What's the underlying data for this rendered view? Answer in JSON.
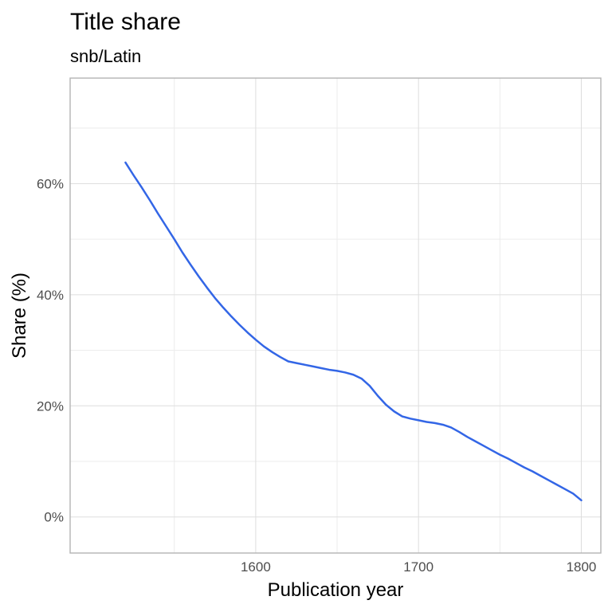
{
  "chart_data": {
    "type": "line",
    "title": "Title share",
    "subtitle": "snb/Latin",
    "xlabel": "Publication year",
    "ylabel": "Share (%)",
    "xlim": [
      1486,
      1812
    ],
    "ylim": [
      -6.5,
      79
    ],
    "x_ticks": [
      1600,
      1700,
      1800
    ],
    "x_tick_labels": [
      "1600",
      "1700",
      "1800"
    ],
    "x_minor_ticks": [
      1550,
      1650,
      1750
    ],
    "y_ticks": [
      0,
      20,
      40,
      60
    ],
    "y_tick_labels": [
      "0%",
      "20%",
      "40%",
      "60%"
    ],
    "y_minor_ticks": [
      10,
      30,
      50,
      70
    ],
    "grid": true,
    "line_color": "#3366e6",
    "series": [
      {
        "x": [
          1520,
          1525,
          1530,
          1535,
          1540,
          1545,
          1550,
          1555,
          1560,
          1565,
          1570,
          1575,
          1580,
          1585,
          1590,
          1595,
          1600,
          1605,
          1610,
          1615,
          1620,
          1625,
          1630,
          1635,
          1640,
          1645,
          1650,
          1655,
          1660,
          1665,
          1670,
          1675,
          1680,
          1685,
          1690,
          1695,
          1700,
          1705,
          1710,
          1715,
          1720,
          1725,
          1730,
          1735,
          1740,
          1745,
          1750,
          1755,
          1760,
          1765,
          1770,
          1775,
          1780,
          1785,
          1790,
          1795,
          1800
        ],
        "y": [
          63.8,
          61.5,
          59.3,
          57.0,
          54.6,
          52.3,
          50.0,
          47.6,
          45.4,
          43.3,
          41.3,
          39.4,
          37.7,
          36.1,
          34.6,
          33.2,
          31.9,
          30.7,
          29.7,
          28.8,
          28.0,
          27.7,
          27.4,
          27.1,
          26.8,
          26.5,
          26.3,
          26.0,
          25.6,
          24.9,
          23.6,
          21.8,
          20.2,
          19.0,
          18.1,
          17.7,
          17.4,
          17.1,
          16.9,
          16.6,
          16.1,
          15.3,
          14.4,
          13.6,
          12.8,
          12.0,
          11.2,
          10.5,
          9.7,
          8.9,
          8.2,
          7.4,
          6.6,
          5.8,
          5.0,
          4.2,
          3.0
        ]
      }
    ]
  }
}
